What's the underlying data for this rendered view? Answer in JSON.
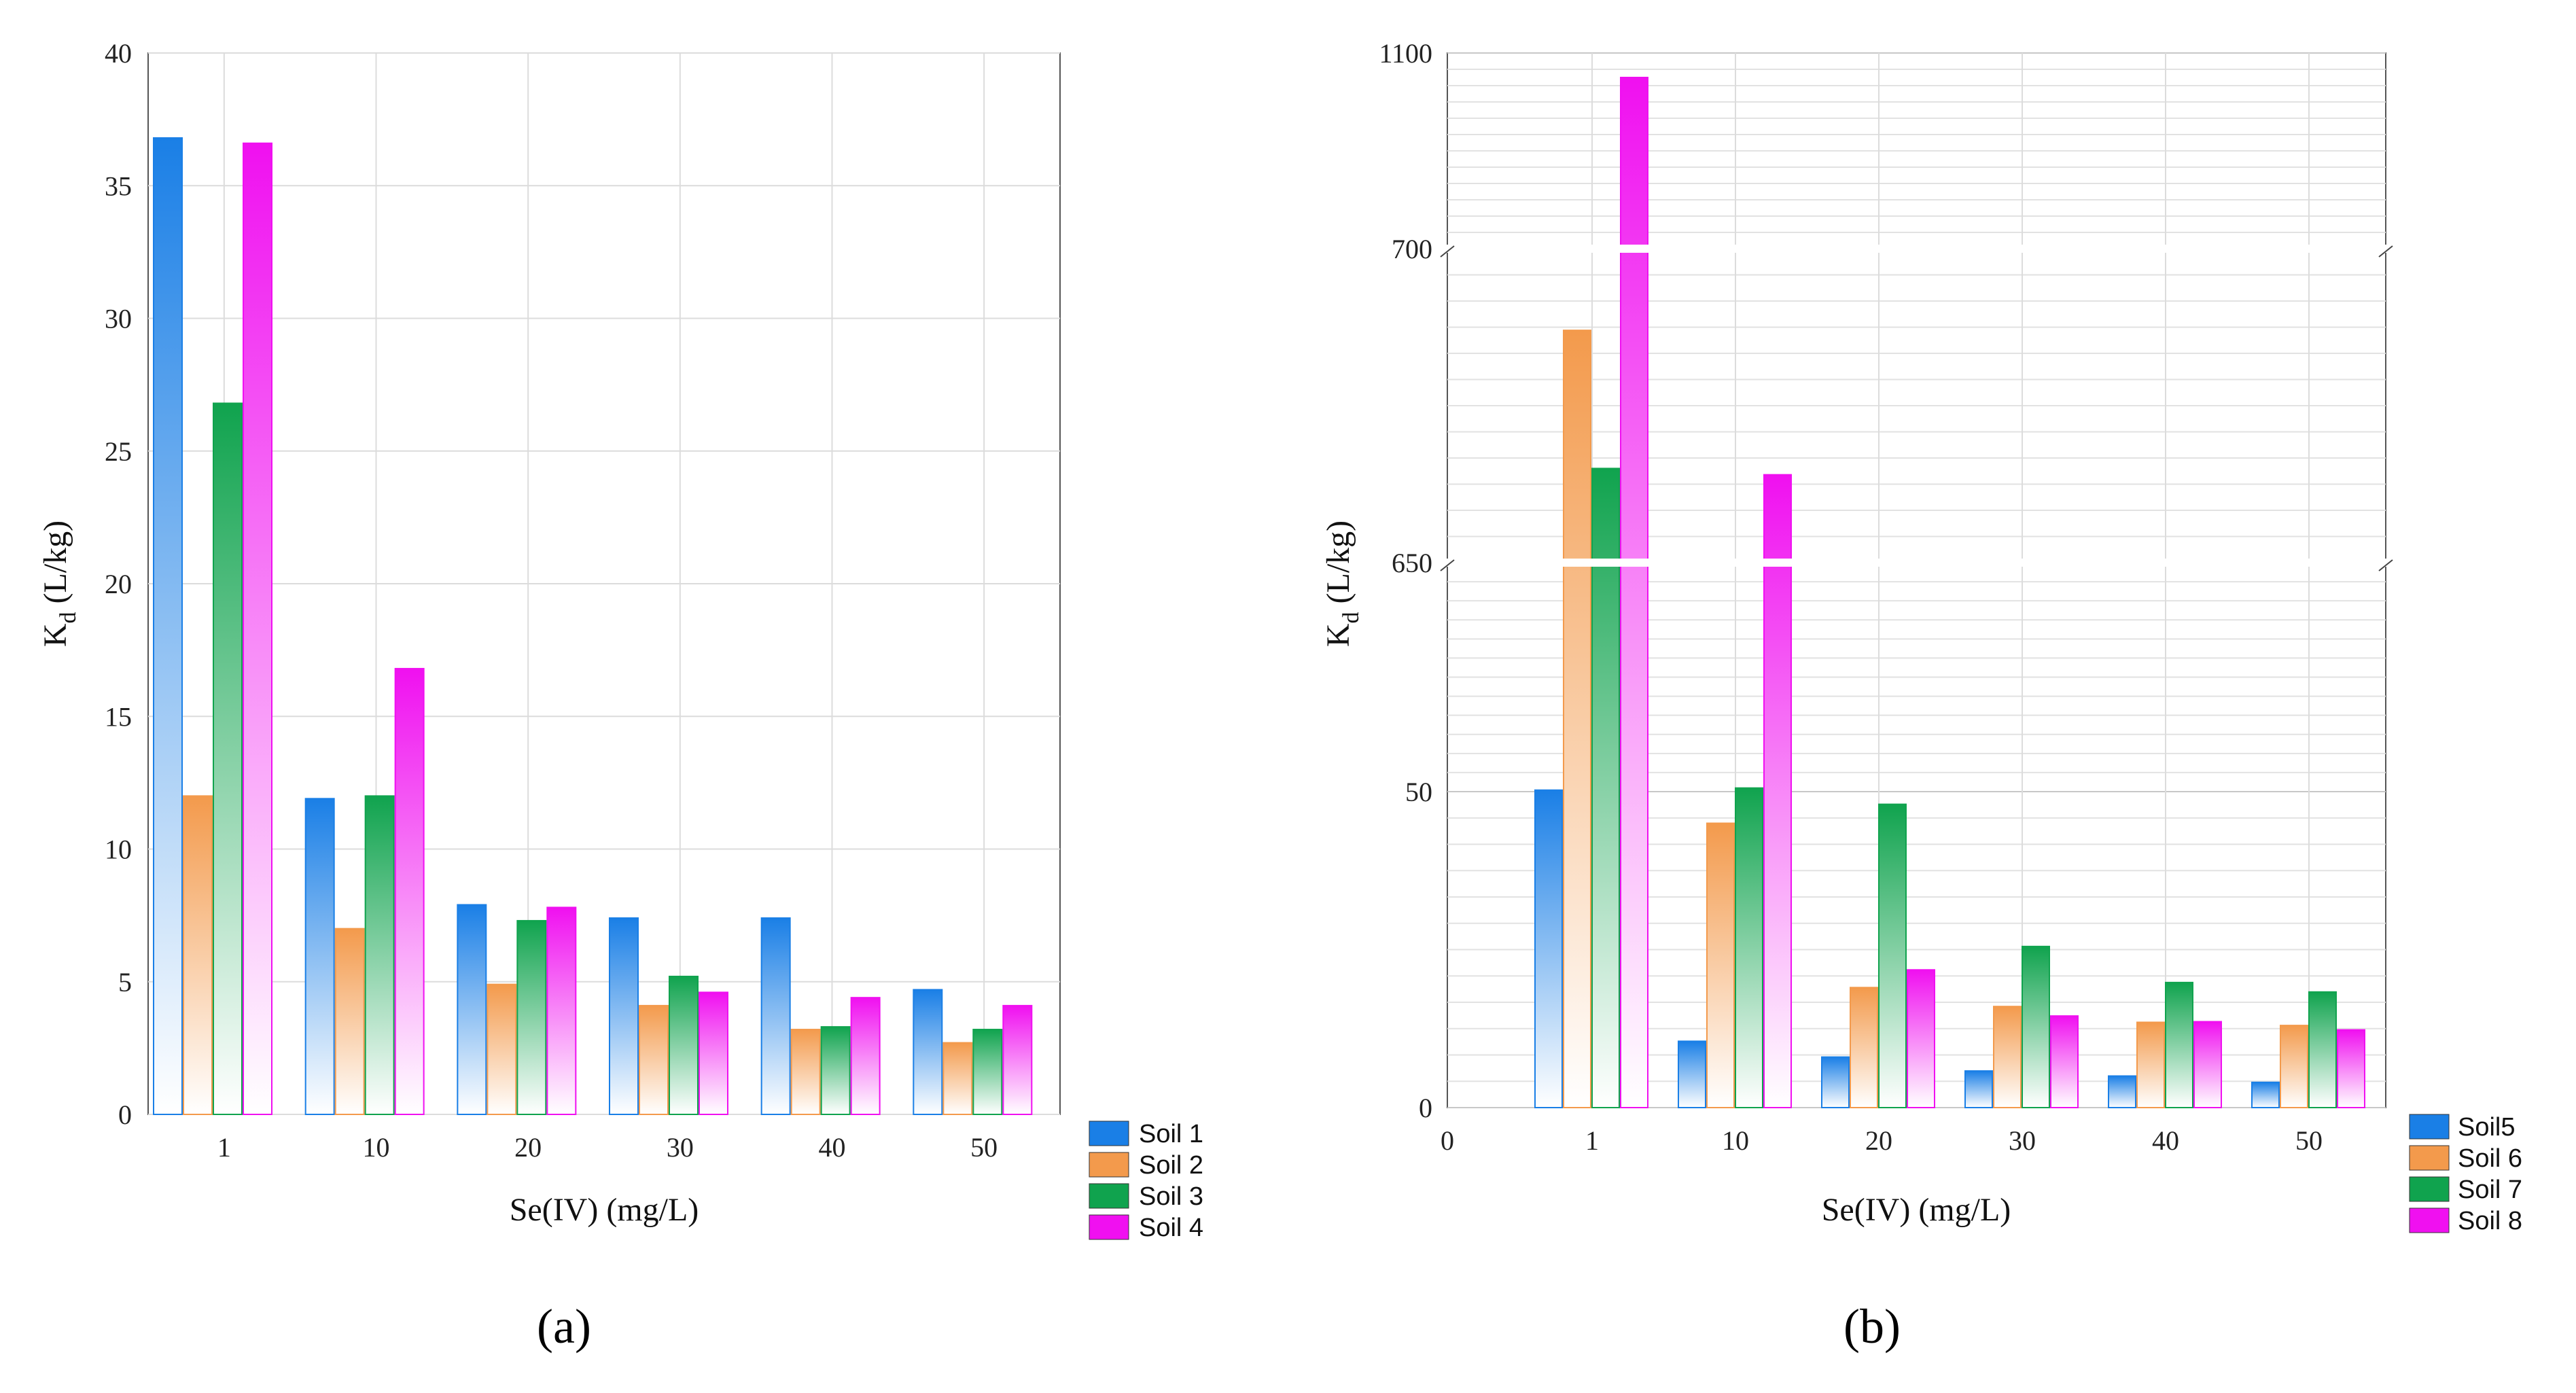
{
  "figure": {
    "panel_labels": [
      "(a)",
      "(b)"
    ]
  },
  "chart_data": [
    {
      "type": "bar",
      "panel": "(a)",
      "title": "",
      "xlabel": "Se(IV) (mg/L)",
      "ylabel": "K_d (L/kg)",
      "ylabel_main": "K",
      "ylabel_sub": "d",
      "ylabel_rest": " (L/kg)",
      "ylim": [
        0,
        40
      ],
      "yticks": [
        "0",
        "5",
        "10",
        "15",
        "20",
        "25",
        "30",
        "35",
        "40"
      ],
      "categories": [
        "1",
        "10",
        "20",
        "30",
        "40",
        "50"
      ],
      "legend_position": "bottom-right outside",
      "series": [
        {
          "name": "Soil 1",
          "color": "#1a7fe6",
          "values": [
            36.8,
            11.9,
            7.9,
            7.4,
            7.4,
            4.7
          ]
        },
        {
          "name": "Soil 2",
          "color": "#f39a4c",
          "values": [
            12.0,
            7.0,
            4.9,
            4.1,
            3.2,
            2.7
          ]
        },
        {
          "name": "Soil 3",
          "color": "#10a34e",
          "values": [
            26.8,
            12.0,
            7.3,
            5.2,
            3.3,
            3.2
          ]
        },
        {
          "name": "Soil 4",
          "color": "#f010f0",
          "values": [
            36.6,
            16.8,
            7.8,
            4.6,
            4.4,
            4.1
          ]
        }
      ]
    },
    {
      "type": "bar",
      "panel": "(b)",
      "title": "",
      "xlabel": "Se(IV) (mg/L)",
      "ylabel": "K_d (L/kg)",
      "ylabel_main": "K",
      "ylabel_sub": "d",
      "ylabel_rest": " (L/kg)",
      "y_axis_breaks": "broken axis: 0–50 (linear), break at 50→650, 650–700, break at 700→1100",
      "yticks": [
        "0",
        "50",
        "650",
        "700",
        "1100"
      ],
      "x_origin_label": "0",
      "categories": [
        "1",
        "10",
        "20",
        "30",
        "40",
        "50"
      ],
      "legend_position": "bottom-right outside",
      "series": [
        {
          "name": "Soil5",
          "color": "#1a7fe6",
          "values": [
            54,
            10.5,
            8,
            5.8,
            5.0,
            4.0
          ]
        },
        {
          "name": "Soil 6",
          "color": "#f39a4c",
          "values": [
            687,
            45,
            19,
            16,
            13.5,
            13.0
          ]
        },
        {
          "name": "Soil 7",
          "color": "#10a34e",
          "values": [
            665,
            59.5,
            48,
            25.5,
            19.8,
            18.3
          ]
        },
        {
          "name": "Soil 8",
          "color": "#f010f0",
          "values": [
            1050,
            664,
            21.8,
            14.5,
            13.6,
            12.3
          ]
        }
      ]
    }
  ]
}
